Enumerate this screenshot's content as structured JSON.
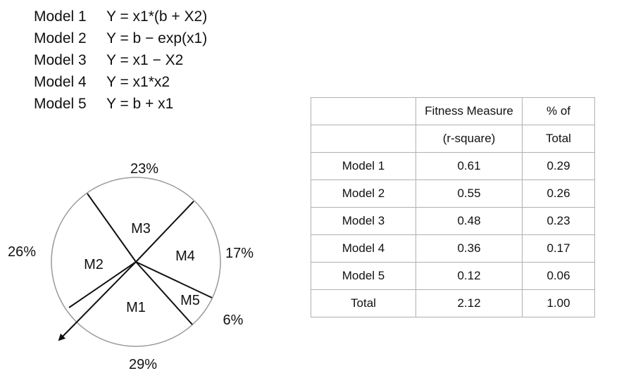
{
  "models": [
    {
      "name": "Model 1",
      "formula": "Y = x1*(b + X2)"
    },
    {
      "name": "Model 2",
      "formula": "Y = b − exp(x1)"
    },
    {
      "name": "Model 3",
      "formula": "Y = x1 − X2"
    },
    {
      "name": "Model 4",
      "formula": "Y = x1*x2"
    },
    {
      "name": "Model 5",
      "formula": "Y = b + x1"
    }
  ],
  "pie": {
    "slices": [
      {
        "label": "M1",
        "percent_label": "29%",
        "share": 0.29
      },
      {
        "label": "M2",
        "percent_label": "26%",
        "share": 0.26
      },
      {
        "label": "M3",
        "percent_label": "23%",
        "share": 0.23
      },
      {
        "label": "M4",
        "percent_label": "17%",
        "share": 0.17
      },
      {
        "label": "M5",
        "percent_label": "6%",
        "share": 0.06
      }
    ]
  },
  "table": {
    "header_row1": [
      "",
      "Fitness Measure",
      "% of"
    ],
    "header_row2": [
      "",
      "(r-square)",
      "Total"
    ],
    "rows": [
      [
        "Model 1",
        "0.61",
        "0.29"
      ],
      [
        "Model 2",
        "0.55",
        "0.26"
      ],
      [
        "Model 3",
        "0.48",
        "0.23"
      ],
      [
        "Model 4",
        "0.36",
        "0.17"
      ],
      [
        "Model 5",
        "0.12",
        "0.06"
      ],
      [
        "Total",
        "2.12",
        "1.00"
      ]
    ]
  }
}
